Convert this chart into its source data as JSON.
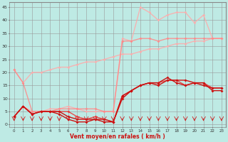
{
  "bg_color": "#beeae4",
  "grid_color": "#999999",
  "xlabel": "Vent moyen/en rafales ( km/h )",
  "ylim": [
    -1,
    47
  ],
  "xlim": [
    -0.5,
    23.5
  ],
  "yticks": [
    0,
    5,
    10,
    15,
    20,
    25,
    30,
    35,
    40,
    45
  ],
  "xticks": [
    0,
    1,
    2,
    3,
    4,
    5,
    6,
    7,
    8,
    9,
    10,
    11,
    12,
    13,
    14,
    15,
    16,
    17,
    18,
    19,
    20,
    21,
    22,
    23
  ],
  "series": [
    {
      "x": [
        0,
        1,
        2,
        3,
        4,
        5,
        6,
        7,
        8,
        9,
        10,
        11,
        12,
        13,
        14,
        15,
        16,
        17,
        18,
        19,
        20,
        21,
        22,
        23
      ],
      "y": [
        3,
        7,
        4,
        5,
        5,
        4,
        2,
        1,
        1,
        2,
        1,
        1,
        10,
        13,
        15,
        16,
        15,
        17,
        17,
        17,
        16,
        16,
        13,
        13
      ],
      "color": "#cc1111",
      "marker": "D",
      "markersize": 2.0,
      "linewidth": 1.0,
      "alpha": 1.0,
      "zorder": 5
    },
    {
      "x": [
        0,
        1,
        2,
        3,
        4,
        5,
        6,
        7,
        8,
        9,
        10,
        11,
        12,
        13,
        14,
        15,
        16,
        17,
        18,
        19,
        20,
        21,
        22,
        23
      ],
      "y": [
        3,
        7,
        4,
        5,
        5,
        5,
        3,
        2,
        2,
        2,
        2,
        1,
        11,
        13,
        15,
        16,
        16,
        18,
        16,
        15,
        16,
        15,
        14,
        14
      ],
      "color": "#cc1111",
      "marker": "D",
      "markersize": 2.0,
      "linewidth": 1.0,
      "alpha": 1.0,
      "zorder": 5
    },
    {
      "x": [
        0,
        1,
        2,
        3,
        4,
        5,
        6,
        7,
        8,
        9,
        10,
        11,
        12,
        13,
        14,
        15,
        16,
        17,
        18,
        19,
        20,
        21,
        22,
        23
      ],
      "y": [
        3,
        7,
        4,
        5,
        5,
        5,
        5,
        3,
        2,
        3,
        2,
        1,
        11,
        13,
        15,
        16,
        16,
        17,
        17,
        15,
        16,
        16,
        14,
        14
      ],
      "color": "#ee3333",
      "marker": "D",
      "markersize": 2.0,
      "linewidth": 1.0,
      "alpha": 0.85,
      "zorder": 4
    },
    {
      "x": [
        0,
        1,
        2,
        3,
        4,
        5,
        6,
        7,
        8,
        9,
        10,
        11,
        12,
        13,
        14,
        15,
        16,
        17,
        18,
        19,
        20,
        21,
        22,
        23
      ],
      "y": [
        21,
        16,
        5,
        5,
        5,
        6,
        6,
        6,
        6,
        6,
        5,
        5,
        32,
        32,
        33,
        33,
        32,
        33,
        33,
        33,
        33,
        33,
        33,
        33
      ],
      "color": "#ff8888",
      "marker": "D",
      "markersize": 2.0,
      "linewidth": 1.0,
      "alpha": 0.85,
      "zorder": 3
    },
    {
      "x": [
        0,
        1,
        2,
        3,
        4,
        5,
        6,
        7,
        8,
        9,
        10,
        11,
        12,
        13,
        14,
        15,
        16,
        17,
        18,
        19,
        20,
        21,
        22,
        23
      ],
      "y": [
        21,
        16,
        20,
        20,
        21,
        22,
        22,
        23,
        24,
        24,
        25,
        26,
        27,
        27,
        28,
        29,
        29,
        30,
        31,
        31,
        32,
        32,
        33,
        33
      ],
      "color": "#ffaaaa",
      "marker": "D",
      "markersize": 1.8,
      "linewidth": 1.0,
      "alpha": 0.85,
      "zorder": 2
    },
    {
      "x": [
        0,
        1,
        2,
        3,
        4,
        5,
        6,
        7,
        8,
        9,
        10,
        11,
        12,
        13,
        14,
        15,
        16,
        17,
        18,
        19,
        20,
        21,
        22,
        23
      ],
      "y": [
        3,
        7,
        5,
        5,
        6,
        6,
        7,
        6,
        5,
        5,
        5,
        5,
        33,
        32,
        45,
        43,
        40,
        42,
        43,
        43,
        39,
        42,
        33,
        33
      ],
      "color": "#ffaaaa",
      "marker": "D",
      "markersize": 1.8,
      "linewidth": 1.0,
      "alpha": 0.85,
      "zorder": 2
    }
  ]
}
